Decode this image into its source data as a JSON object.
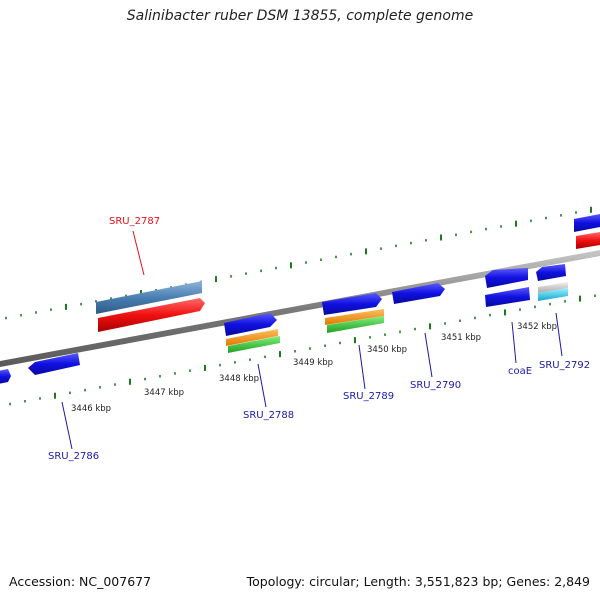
{
  "title": "Salinibacter ruber DSM 13855, complete genome",
  "footer": {
    "accession": "Accession: NC_007677",
    "stats": "Topology: circular; Length: 3,551,823 bp; Genes: 2,849"
  },
  "scale_labels": [
    "3446 kbp",
    "3447 kbp",
    "3448 kbp",
    "3449 kbp",
    "3450 kbp",
    "3451 kbp",
    "3452 kbp"
  ],
  "gene_labels": {
    "sru2787": "SRU_2787",
    "sru2786": "SRU_2786",
    "sru2788": "SRU_2788",
    "sru2789": "SRU_2789",
    "sru2790": "SRU_2790",
    "coae": "coaE",
    "sru2792": "SRU_2792"
  },
  "colors": {
    "highlight": "#e8101a",
    "label": "#1a1aa8",
    "gene": "#1212e0",
    "backbone": "#8c8c8c",
    "tick": "#1e7a1e"
  }
}
